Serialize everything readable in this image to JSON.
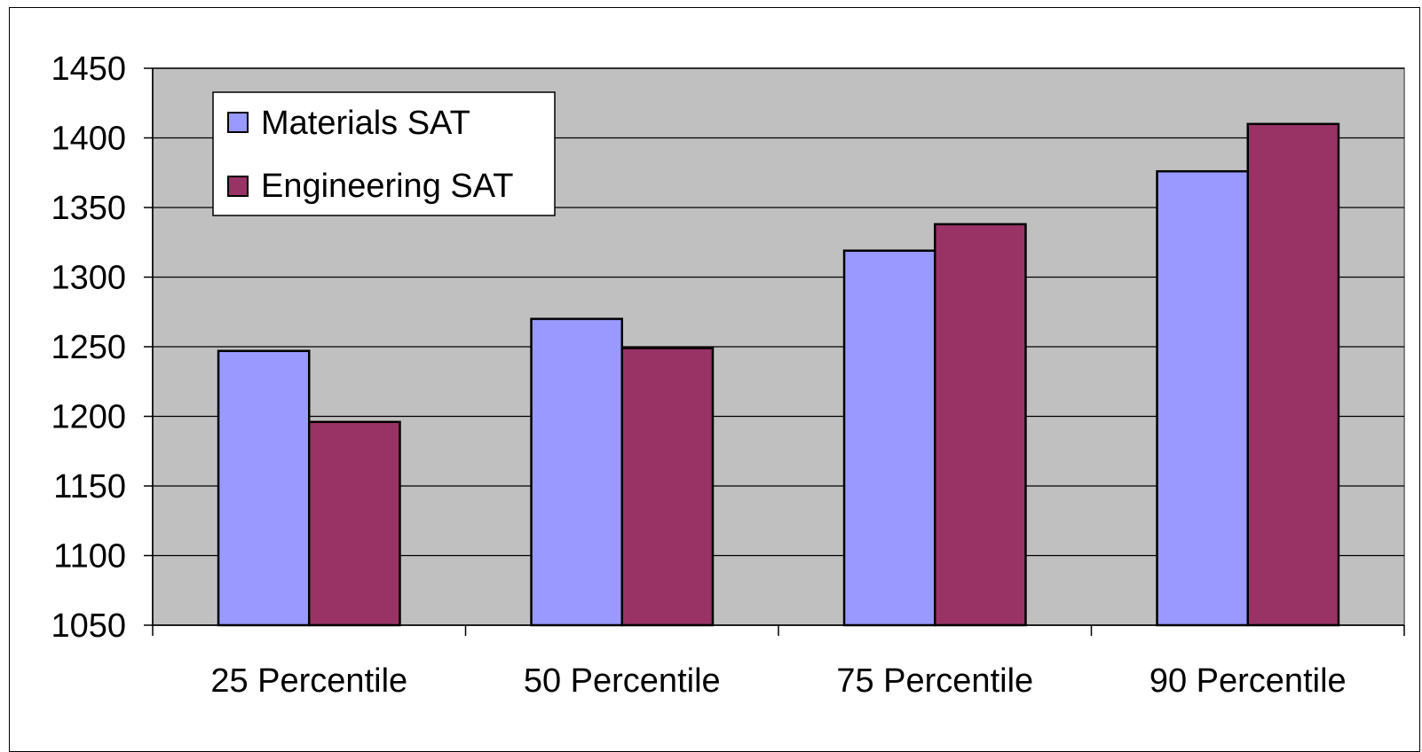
{
  "chart_data": {
    "type": "bar",
    "title": "",
    "xlabel": "",
    "ylabel": "",
    "categories": [
      "25 Percentile",
      "50 Percentile",
      "75 Percentile",
      "90 Percentile"
    ],
    "series": [
      {
        "name": "Materials SAT",
        "color": "#9999ff",
        "values": [
          1247,
          1270,
          1319,
          1376
        ]
      },
      {
        "name": "Engineering SAT",
        "color": "#993366",
        "values": [
          1196,
          1249,
          1338,
          1410
        ]
      }
    ],
    "ylim": [
      1050,
      1450
    ],
    "yticks": [
      1050,
      1100,
      1150,
      1200,
      1250,
      1300,
      1350,
      1400,
      1450
    ],
    "grid": true,
    "plot_background": "#c0c0c0",
    "legend_position": "top-left"
  }
}
